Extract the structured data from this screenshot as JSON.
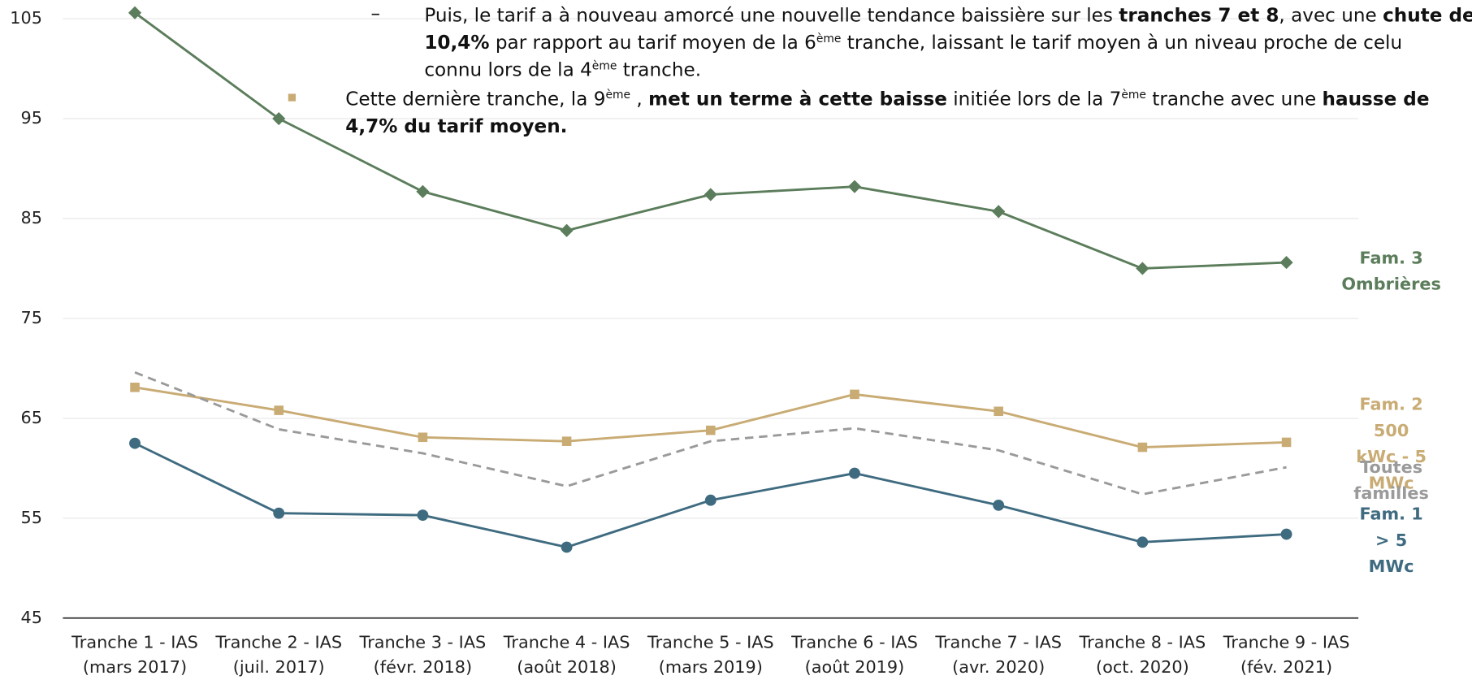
{
  "chart_data": {
    "type": "line",
    "categories": [
      "Tranche 1 - IAS\n(mars 2017)",
      "Tranche 2 - IAS\n(juil. 2017)",
      "Tranche 3 - IAS\n(févr. 2018)",
      "Tranche 4 - IAS\n(août 2018)",
      "Tranche 5 - IAS\n(mars 2019)",
      "Tranche 6 - IAS\n(août 2019)",
      "Tranche 7 - IAS\n(avr. 2020)",
      "Tranche 8 - IAS\n(oct. 2020)",
      "Tranche 9 - IAS\n(fév. 2021)"
    ],
    "series": [
      {
        "name": "Fam. 3\nOmbrières",
        "color": "#5b7d5b",
        "marker": "diamond",
        "values": [
          105.6,
          95.0,
          87.7,
          83.8,
          87.4,
          88.2,
          85.7,
          80.0,
          80.6
        ]
      },
      {
        "name": "Fam. 2\n500 kWc - 5 MWc",
        "color": "#c9ab74",
        "marker": "square",
        "values": [
          68.1,
          65.8,
          63.1,
          62.7,
          63.8,
          67.4,
          65.7,
          62.1,
          62.6
        ]
      },
      {
        "name": "Toutes familles",
        "color": "#9a9a9a",
        "marker": "none",
        "dashed": true,
        "values": [
          69.6,
          63.9,
          61.5,
          58.2,
          62.7,
          64.0,
          61.8,
          57.4,
          60.1
        ]
      },
      {
        "name": "Fam. 1\n> 5 MWc",
        "color": "#3f6b80",
        "marker": "circle",
        "values": [
          62.5,
          55.5,
          55.3,
          52.1,
          56.8,
          59.5,
          56.3,
          52.6,
          53.4
        ]
      }
    ],
    "ylim": [
      45,
      105
    ],
    "yticks": [
      45,
      55,
      65,
      75,
      85,
      95,
      105
    ],
    "grid": true,
    "annotations": [
      [
        "Puis, le tarif a à nouveau amorcé une nouvelle tendance baissière sur les ",
        "tranches 7 et 8",
        ", avec une ",
        "chute de 10,4%",
        " par rapport au tarif moyen de la 6",
        "ème",
        " tranche, laissant le tarif moyen à un niveau proche de celu",
        "connu lors de la 4",
        "ème",
        " tranche."
      ],
      [
        "Cette dernière tranche, la 9",
        "ème",
        " , ",
        "met un terme à cette baisse",
        " initiée lors de la 7",
        "ème",
        " tranche avec une ",
        "hausse de 4,7% du tarif moyen."
      ]
    ]
  }
}
